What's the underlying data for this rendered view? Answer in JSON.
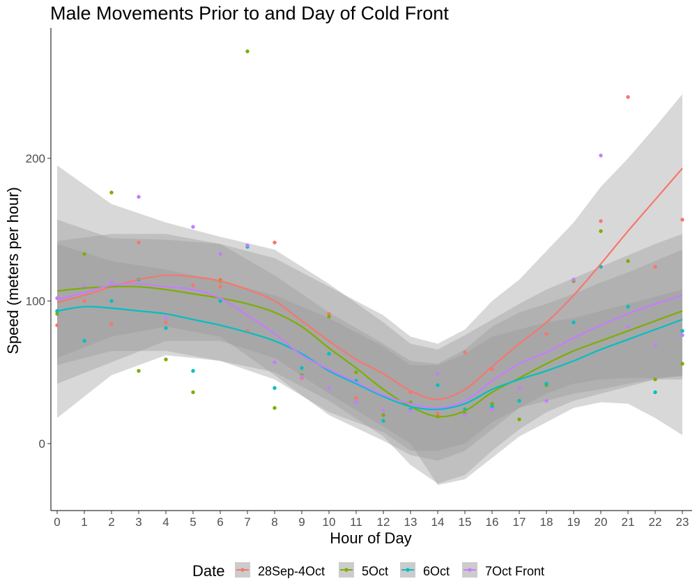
{
  "chart_data": {
    "type": "scatter",
    "title": "Male Movements Prior to and Day of Cold Front",
    "xlabel": "Hour of Day",
    "ylabel": "Speed (meters per hour)",
    "xlim": [
      -0.3,
      23.3
    ],
    "ylim": [
      -47,
      290
    ],
    "x_ticks": [
      0,
      1,
      2,
      3,
      4,
      5,
      6,
      7,
      8,
      9,
      10,
      11,
      12,
      13,
      14,
      15,
      16,
      17,
      18,
      19,
      20,
      21,
      22,
      23
    ],
    "y_ticks": [
      0,
      100,
      200
    ],
    "legend": {
      "title": "Date",
      "position": "bottom"
    },
    "ribbon_color": "#999999",
    "series": [
      {
        "name": "28Sep-4Oct",
        "color": "#F8766D",
        "points": [
          [
            0,
            83
          ],
          [
            1,
            100
          ],
          [
            2,
            84
          ],
          [
            3,
            141
          ],
          [
            4,
            85
          ],
          [
            5,
            111
          ],
          [
            6,
            115
          ],
          [
            6,
            110
          ],
          [
            7,
            79
          ],
          [
            8,
            141
          ],
          [
            9,
            46
          ],
          [
            10,
            91
          ],
          [
            11,
            32
          ],
          [
            12,
            20
          ],
          [
            13,
            36
          ],
          [
            14,
            21
          ],
          [
            15,
            64
          ],
          [
            16,
            52
          ],
          [
            17,
            39
          ],
          [
            18,
            77
          ],
          [
            19,
            114
          ],
          [
            20,
            156
          ],
          [
            20,
            124
          ],
          [
            21,
            243
          ],
          [
            22,
            124
          ],
          [
            23,
            157
          ]
        ],
        "smooth": [
          [
            0,
            99
          ],
          [
            1,
            104
          ],
          [
            2,
            110
          ],
          [
            3,
            115
          ],
          [
            4,
            118
          ],
          [
            5,
            117
          ],
          [
            6,
            114
          ],
          [
            7,
            108
          ],
          [
            8,
            100
          ],
          [
            9,
            86
          ],
          [
            10,
            72
          ],
          [
            11,
            59
          ],
          [
            12,
            49
          ],
          [
            13,
            37
          ],
          [
            14,
            31
          ],
          [
            15,
            38
          ],
          [
            16,
            54
          ],
          [
            17,
            70
          ],
          [
            18,
            85
          ],
          [
            19,
            104
          ],
          [
            20,
            126
          ],
          [
            21,
            149
          ],
          [
            22,
            171
          ],
          [
            23,
            193
          ]
        ],
        "band": [
          [
            0,
            42,
            157
          ],
          [
            2,
            57,
            144
          ],
          [
            4,
            72,
            143
          ],
          [
            6,
            72,
            140
          ],
          [
            8,
            60,
            130
          ],
          [
            10,
            35,
            110
          ],
          [
            12,
            12,
            90
          ],
          [
            13,
            0,
            75
          ],
          [
            14,
            -29,
            70
          ],
          [
            15,
            -25,
            80
          ],
          [
            16,
            -10,
            100
          ],
          [
            17,
            5,
            115
          ],
          [
            18,
            15,
            135
          ],
          [
            19,
            25,
            155
          ],
          [
            20,
            29,
            180
          ],
          [
            21,
            28,
            200
          ],
          [
            22,
            18,
            222
          ],
          [
            23,
            6,
            245
          ]
        ]
      },
      {
        "name": "5Oct",
        "color": "#7CAE00",
        "points": [
          [
            0,
            91
          ],
          [
            1,
            133
          ],
          [
            2,
            176
          ],
          [
            3,
            51
          ],
          [
            4,
            59
          ],
          [
            5,
            36
          ],
          [
            6,
            114
          ],
          [
            7,
            275
          ],
          [
            8,
            25
          ],
          [
            9,
            48
          ],
          [
            10,
            89
          ],
          [
            11,
            50
          ],
          [
            12,
            20
          ],
          [
            13,
            29
          ],
          [
            14,
            19
          ],
          [
            15,
            21
          ],
          [
            16,
            28
          ],
          [
            17,
            17
          ],
          [
            18,
            41
          ],
          [
            19,
            114
          ],
          [
            20,
            149
          ],
          [
            21,
            128
          ],
          [
            22,
            45
          ],
          [
            23,
            56
          ]
        ],
        "smooth": [
          [
            0,
            107
          ],
          [
            1,
            109
          ],
          [
            2,
            110
          ],
          [
            3,
            110
          ],
          [
            4,
            108
          ],
          [
            5,
            105
          ],
          [
            6,
            102
          ],
          [
            7,
            98
          ],
          [
            8,
            92
          ],
          [
            9,
            82
          ],
          [
            10,
            67
          ],
          [
            11,
            53
          ],
          [
            12,
            38
          ],
          [
            13,
            26
          ],
          [
            14,
            19
          ],
          [
            15,
            23
          ],
          [
            16,
            36
          ],
          [
            17,
            46
          ],
          [
            18,
            56
          ],
          [
            19,
            65
          ],
          [
            20,
            72
          ],
          [
            21,
            79
          ],
          [
            22,
            86
          ],
          [
            23,
            93
          ]
        ],
        "band": [
          [
            0,
            18,
            195
          ],
          [
            2,
            48,
            168
          ],
          [
            4,
            62,
            155
          ],
          [
            6,
            58,
            145
          ],
          [
            8,
            50,
            136
          ],
          [
            10,
            30,
            112
          ],
          [
            12,
            5,
            85
          ],
          [
            13,
            -15,
            70
          ],
          [
            14,
            -28,
            66
          ],
          [
            15,
            -22,
            76
          ],
          [
            16,
            -5,
            87
          ],
          [
            17,
            10,
            98
          ],
          [
            18,
            22,
            108
          ],
          [
            19,
            30,
            116
          ],
          [
            20,
            35,
            124
          ],
          [
            21,
            40,
            132
          ],
          [
            22,
            45,
            140
          ],
          [
            23,
            45,
            147
          ]
        ]
      },
      {
        "name": "6Oct",
        "color": "#00BFC4",
        "points": [
          [
            0,
            93
          ],
          [
            1,
            72
          ],
          [
            2,
            100
          ],
          [
            3,
            115
          ],
          [
            4,
            81
          ],
          [
            5,
            51
          ],
          [
            6,
            100
          ],
          [
            7,
            138
          ],
          [
            8,
            39
          ],
          [
            9,
            53
          ],
          [
            10,
            63
          ],
          [
            11,
            44
          ],
          [
            12,
            16
          ],
          [
            13,
            24
          ],
          [
            14,
            41
          ],
          [
            15,
            24
          ],
          [
            16,
            26
          ],
          [
            17,
            30
          ],
          [
            18,
            42
          ],
          [
            19,
            85
          ],
          [
            20,
            124
          ],
          [
            21,
            96
          ],
          [
            22,
            36
          ],
          [
            23,
            79
          ]
        ],
        "smooth": [
          [
            0,
            93
          ],
          [
            1,
            96
          ],
          [
            2,
            95
          ],
          [
            3,
            93
          ],
          [
            4,
            91
          ],
          [
            5,
            87
          ],
          [
            6,
            83
          ],
          [
            7,
            78
          ],
          [
            8,
            72
          ],
          [
            9,
            63
          ],
          [
            10,
            51
          ],
          [
            11,
            42
          ],
          [
            12,
            33
          ],
          [
            13,
            26
          ],
          [
            14,
            24
          ],
          [
            15,
            28
          ],
          [
            16,
            38
          ],
          [
            17,
            45
          ],
          [
            18,
            51
          ],
          [
            19,
            58
          ],
          [
            20,
            66
          ],
          [
            21,
            73
          ],
          [
            22,
            80
          ],
          [
            23,
            87
          ]
        ],
        "band": [
          [
            0,
            55,
            140
          ],
          [
            2,
            65,
            128
          ],
          [
            4,
            65,
            122
          ],
          [
            6,
            58,
            114
          ],
          [
            8,
            45,
            104
          ],
          [
            10,
            22,
            88
          ],
          [
            12,
            8,
            68
          ],
          [
            13,
            -5,
            55
          ],
          [
            14,
            -5,
            55
          ],
          [
            15,
            0,
            63
          ],
          [
            16,
            15,
            75
          ],
          [
            17,
            25,
            80
          ],
          [
            18,
            30,
            85
          ],
          [
            19,
            35,
            88
          ],
          [
            20,
            38,
            93
          ],
          [
            21,
            42,
            98
          ],
          [
            22,
            45,
            103
          ],
          [
            23,
            48,
            108
          ]
        ]
      },
      {
        "name": "7Oct Front",
        "color": "#C77CFF",
        "points": [
          [
            0,
            102
          ],
          [
            1,
            110
          ],
          [
            2,
            113
          ],
          [
            3,
            173
          ],
          [
            4,
            88
          ],
          [
            5,
            152
          ],
          [
            6,
            133
          ],
          [
            7,
            139
          ],
          [
            8,
            57
          ],
          [
            9,
            47
          ],
          [
            10,
            39
          ],
          [
            11,
            29
          ],
          [
            12,
            23
          ],
          [
            13,
            23
          ],
          [
            14,
            49
          ],
          [
            15,
            20
          ],
          [
            16,
            24
          ],
          [
            17,
            39
          ],
          [
            18,
            30
          ],
          [
            19,
            115
          ],
          [
            20,
            202
          ],
          [
            21,
            82
          ],
          [
            22,
            69
          ],
          [
            23,
            76
          ]
        ],
        "smooth": [
          [
            0,
            101
          ],
          [
            1,
            106
          ],
          [
            2,
            111
          ],
          [
            3,
            112
          ],
          [
            4,
            110
          ],
          [
            5,
            108
          ],
          [
            6,
            102
          ],
          [
            7,
            90
          ],
          [
            8,
            77
          ],
          [
            9,
            62
          ],
          [
            10,
            52
          ],
          [
            11,
            43
          ],
          [
            12,
            34
          ],
          [
            13,
            28
          ],
          [
            14,
            25
          ],
          [
            15,
            30
          ],
          [
            16,
            44
          ],
          [
            17,
            56
          ],
          [
            18,
            64
          ],
          [
            19,
            74
          ],
          [
            20,
            83
          ],
          [
            21,
            91
          ],
          [
            22,
            98
          ],
          [
            23,
            104
          ]
        ],
        "band": [
          [
            0,
            60,
            142
          ],
          [
            2,
            75,
            147
          ],
          [
            4,
            82,
            147
          ],
          [
            6,
            75,
            140
          ],
          [
            8,
            48,
            118
          ],
          [
            10,
            20,
            92
          ],
          [
            12,
            2,
            70
          ],
          [
            13,
            -8,
            58
          ],
          [
            14,
            -12,
            56
          ],
          [
            15,
            -5,
            66
          ],
          [
            16,
            10,
            82
          ],
          [
            17,
            25,
            92
          ],
          [
            18,
            35,
            98
          ],
          [
            19,
            42,
            105
          ],
          [
            20,
            45,
            113
          ],
          [
            21,
            46,
            120
          ],
          [
            22,
            46,
            128
          ],
          [
            23,
            47,
            136
          ]
        ]
      }
    ]
  }
}
